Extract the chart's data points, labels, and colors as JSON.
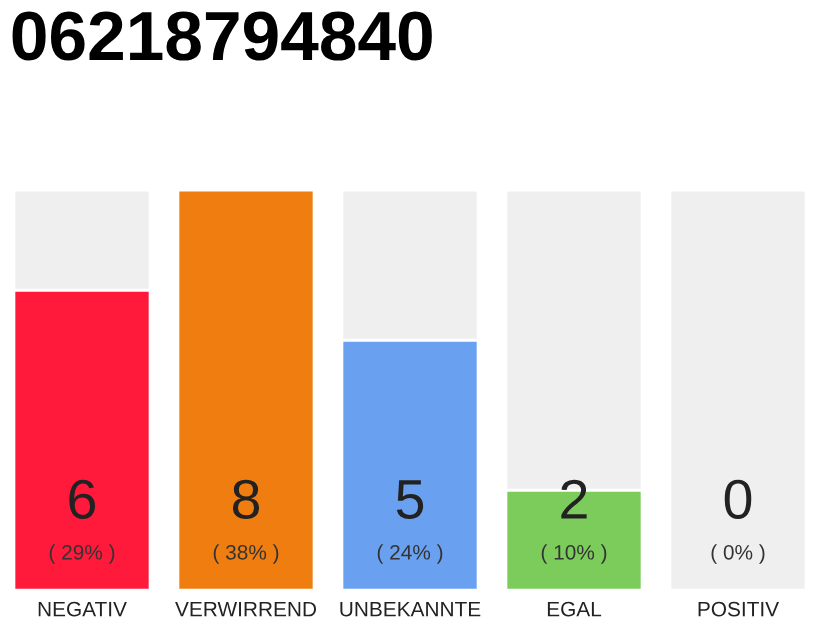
{
  "chart_data": {
    "type": "bar",
    "title": "06218794840",
    "categories": [
      "NEGATIV",
      "VERWIRREND",
      "UNBEKANNTE",
      "EGAL",
      "POSITIV"
    ],
    "stacked": true,
    "series": [
      {
        "values": [
          6,
          8,
          5,
          2,
          0
        ],
        "colors": [
          "#ff1a3c",
          "#f07d0f",
          "#6aa0f0",
          "#7ccc5c",
          "#efefef"
        ],
        "value_labels": [
          "6\n( 29% )",
          "8\n( 38% )",
          "5\n( 24% )",
          "2\n( 10% )",
          "0\n( 0% )"
        ]
      },
      {
        "values": [
          2,
          0,
          3,
          6,
          8
        ],
        "color": "#efefef"
      }
    ],
    "ylim": [
      0,
      8
    ],
    "tick_labels": "x"
  }
}
